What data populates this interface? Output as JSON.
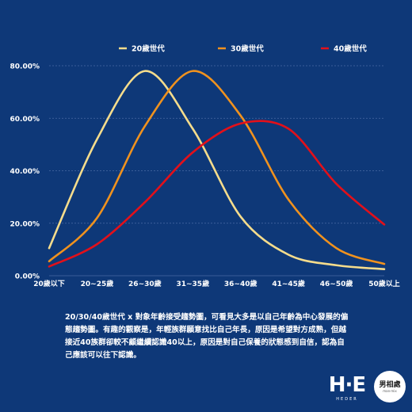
{
  "chart_data": {
    "type": "line",
    "categories": [
      "20歲以下",
      "20~25歲",
      "26~30歲",
      "31~35歲",
      "36~40歲",
      "41~45歲",
      "46~50歲",
      "50歲以上"
    ],
    "series": [
      {
        "name": "20歲世代",
        "color": "#f5dc8c",
        "values": [
          10.5,
          52,
          78,
          56,
          22.5,
          8,
          4,
          2.5
        ]
      },
      {
        "name": "30歲世代",
        "color": "#f0921e",
        "values": [
          5.5,
          22,
          57,
          78,
          61,
          29,
          10.5,
          4.5
        ]
      },
      {
        "name": "40歲世代",
        "color": "#e2101a",
        "values": [
          3.5,
          12,
          28,
          47,
          58,
          56,
          35,
          19.5
        ]
      }
    ],
    "yticks": [
      "0.00%",
      "20.00%",
      "40.00%",
      "60.00%",
      "80.00%"
    ],
    "ylim": [
      0,
      80
    ],
    "grid": true,
    "legend_position": "top"
  },
  "caption": "20/30/40歲世代 x 對象年齡接受趨勢圖，可看見大多是以自己年齡為中心發展的偏態趨勢圖。有趣的觀察是，年輕族群願意找比自己年長，原因是希望對方成熟，但越接近40族群卻較不顧繼續認識40以上，原因是對自己保養的狀態感到自信，認為自己應該可以往下認識。",
  "brand": {
    "logo_text": "H·E",
    "logo_sub": "HEDER",
    "seal_text": "男相處",
    "seal_sub": "man·mix"
  }
}
